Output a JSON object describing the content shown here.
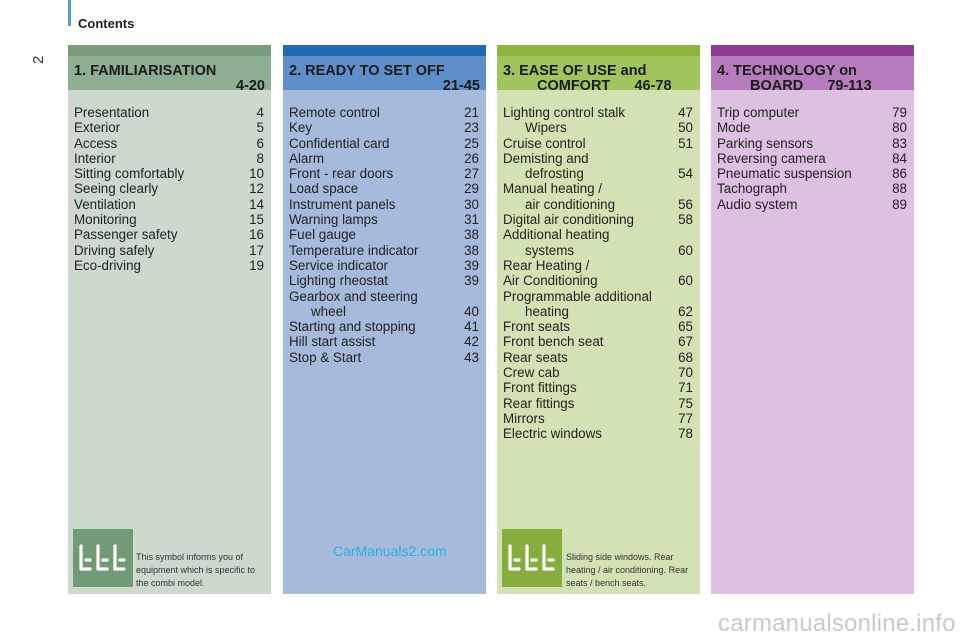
{
  "page": {
    "number": "2",
    "header": "Contents"
  },
  "colors": {
    "familiarisation": {
      "top": "#7a9c7e",
      "head": "#8fad92",
      "body": "#cdd9cd"
    },
    "ready": {
      "top": "#1f6cb0",
      "head": "#5f8fcb",
      "body": "#a6badc"
    },
    "ease": {
      "top": "#8db43c",
      "head": "#a2c45e",
      "body": "#d3e2b4"
    },
    "technology": {
      "top": "#8c3c93",
      "head": "#b57bbd",
      "body": "#dcc1e0"
    },
    "icon_bg": "#739a76",
    "icon_bg_ease": "#86ad3e"
  },
  "sections": [
    {
      "key": "familiarisation",
      "title_line1": "1. FAMILIARISATION",
      "title_line2": "4-20",
      "items": [
        {
          "label": "Presentation",
          "cont": "",
          "page": "4"
        },
        {
          "label": "Exterior",
          "cont": "",
          "page": "5"
        },
        {
          "label": "Access",
          "cont": "",
          "page": "6"
        },
        {
          "label": "Interior",
          "cont": "",
          "page": "8"
        },
        {
          "label": "Sitting comfortably",
          "cont": "",
          "page": "10"
        },
        {
          "label": "Seeing clearly",
          "cont": "",
          "page": "12"
        },
        {
          "label": "Ventilation",
          "cont": "",
          "page": "14"
        },
        {
          "label": "Monitoring",
          "cont": "",
          "page": "15"
        },
        {
          "label": "Passenger safety",
          "cont": "",
          "page": "16"
        },
        {
          "label": "Driving safely",
          "cont": "",
          "page": "17"
        },
        {
          "label": "Eco-driving",
          "cont": "",
          "page": "19"
        }
      ],
      "note": "This symbol informs you of equipment which is specific to the combi model.",
      "icon": "seats-symbol-icon"
    },
    {
      "key": "ready",
      "title_line1": "2. READY TO SET OFF",
      "title_line2": "21-45",
      "items": [
        {
          "label": "Remote control",
          "cont": "",
          "page": "21"
        },
        {
          "label": "Key",
          "cont": "",
          "page": "23"
        },
        {
          "label": "Confidential card",
          "cont": "",
          "page": "25"
        },
        {
          "label": "Alarm",
          "cont": "",
          "page": "26"
        },
        {
          "label": "Front - rear doors",
          "cont": "",
          "page": "27"
        },
        {
          "label": "Load space",
          "cont": "",
          "page": "29"
        },
        {
          "label": "Instrument panels",
          "cont": "",
          "page": "30"
        },
        {
          "label": "Warning lamps",
          "cont": "",
          "page": "31"
        },
        {
          "label": "Fuel gauge",
          "cont": "",
          "page": "38"
        },
        {
          "label": "Temperature indicator",
          "cont": "",
          "page": "38"
        },
        {
          "label": "Service indicator",
          "cont": "",
          "page": "39"
        },
        {
          "label": "Lighting rheostat",
          "cont": "",
          "page": "39"
        },
        {
          "label": "Gearbox and steering",
          "cont": "wheel",
          "page": "40"
        },
        {
          "label": "Starting and stopping",
          "cont": "",
          "page": "41"
        },
        {
          "label": "Hill start assist",
          "cont": "",
          "page": "42"
        },
        {
          "label": "Stop & Start",
          "cont": "",
          "page": "43"
        }
      ],
      "watermark": "CarManuals2.com"
    },
    {
      "key": "ease",
      "title_line1": "3. EASE OF USE and",
      "title_line2": "COMFORT      46-78",
      "items": [
        {
          "label": "Lighting control stalk",
          "cont": "",
          "page": "47"
        },
        {
          "label": "",
          "cont": "Wipers",
          "page": "50"
        },
        {
          "label": "Cruise control",
          "cont": "",
          "page": "51"
        },
        {
          "label": "Demisting and",
          "cont": "defrosting",
          "page": "54"
        },
        {
          "label": "Manual heating /",
          "cont": "air conditioning",
          "page": "56"
        },
        {
          "label": "Digital air conditioning",
          "cont": "",
          "page": "58"
        },
        {
          "label": "Additional heating",
          "cont": "systems",
          "page": "60"
        },
        {
          "label": "Rear Heating /",
          "cont": "",
          "page": ""
        },
        {
          "label": "Air Conditioning",
          "cont": "",
          "page": "60"
        },
        {
          "label": "Programmable additional",
          "cont": "heating",
          "page": "62"
        },
        {
          "label": "Front seats",
          "cont": "",
          "page": "65"
        },
        {
          "label": "Front bench seat",
          "cont": "",
          "page": "67"
        },
        {
          "label": "Rear seats",
          "cont": "",
          "page": "68"
        },
        {
          "label": "Crew cab",
          "cont": "",
          "page": "70"
        },
        {
          "label": "Front fittings",
          "cont": "",
          "page": "71"
        },
        {
          "label": "Rear fittings",
          "cont": "",
          "page": "75"
        },
        {
          "label": "Mirrors",
          "cont": "",
          "page": "77"
        },
        {
          "label": "Electric windows",
          "cont": "",
          "page": "78"
        }
      ],
      "note": "Sliding side windows. Rear heating / air conditioning. Rear seats / bench seats.",
      "icon": "seats-symbol-icon"
    },
    {
      "key": "technology",
      "title_line1": "4. TECHNOLOGY on",
      "title_line2": "BOARD      79-113",
      "items": [
        {
          "label": "Trip computer",
          "cont": "",
          "page": "79"
        },
        {
          "label": "Mode",
          "cont": "",
          "page": "80"
        },
        {
          "label": "Parking sensors",
          "cont": "",
          "page": "83"
        },
        {
          "label": "Reversing camera",
          "cont": "",
          "page": "84"
        },
        {
          "label": "Pneumatic suspension",
          "cont": "",
          "page": "86"
        },
        {
          "label": "Tachograph",
          "cont": "",
          "page": "88"
        },
        {
          "label": "Audio system",
          "cont": "",
          "page": "89"
        }
      ]
    }
  ],
  "footer_watermark": "carmanualsonline.info"
}
